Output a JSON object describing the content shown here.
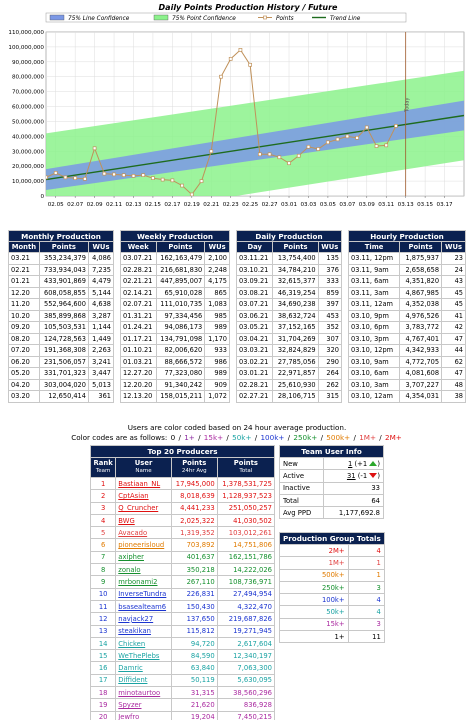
{
  "colors": {
    "band75line": "#7b98e6",
    "band75point": "#8cf28c",
    "points": "#c0915a",
    "trend": "#1e6b1e",
    "header_bg": "#0b2150",
    "forecast_line": "#a05a2c",
    "tier_0": "#000000",
    "tier_1": "#8b2aa0",
    "tier_15k": "#aa2aa0",
    "tier_50k": "#1aa3a3",
    "tier_100k": "#1b34d0",
    "tier_250k": "#15902e",
    "tier_500k": "#e07b00",
    "tier_1m": "#e04040",
    "tier_2m": "#e01010"
  },
  "chart_data": {
    "type": "line",
    "title": "Daily Points Production History / Future",
    "legend": [
      "75% Line Confidence",
      "75% Point Confidence",
      "Points",
      "Trend Line"
    ],
    "x_ticks": [
      "02.05",
      "02.07",
      "02.09",
      "02.11",
      "02.13",
      "02.15",
      "02.17",
      "02.19",
      "02.21",
      "02.23",
      "02.25",
      "02.27",
      "03.01",
      "03.03",
      "03.05",
      "03.07",
      "03.09",
      "03.11",
      "03.13",
      "03.15",
      "03.17"
    ],
    "y_ticks": [
      "0",
      "10,000,000",
      "20,000,000",
      "30,000,000",
      "40,000,000",
      "50,000,000",
      "60,000,000",
      "70,000,000",
      "80,000,000",
      "90,000,000",
      "100,000,000",
      "110,000,000"
    ],
    "ylim": [
      0,
      110000000
    ],
    "x_start_label": "02.04",
    "x_end_label": "03.18",
    "forecast_marker_day": 37,
    "forecast_label": "Today",
    "series": [
      {
        "name": "Points",
        "x": [
          0,
          1,
          2,
          3,
          4,
          5,
          6,
          7,
          8,
          9,
          10,
          11,
          12,
          13,
          14,
          15,
          16,
          17,
          18,
          19,
          20,
          21,
          22,
          23,
          24,
          25,
          26,
          27,
          28,
          29,
          30,
          31,
          32,
          33,
          34,
          35,
          36
        ],
        "values": [
          12500000,
          15500000,
          12500000,
          12000000,
          11500000,
          32000000,
          15000000,
          14500000,
          14000000,
          13500000,
          14000000,
          12000000,
          11000000,
          10500000,
          7000000,
          1000000,
          10000000,
          30000000,
          80000000,
          92000000,
          98000000,
          88000000,
          28000000,
          28000000,
          26000000,
          22000000,
          27000000,
          33000000,
          31500000,
          36000000,
          38000000,
          40000000,
          39000000,
          46000000,
          33500000,
          34000000,
          47000000
        ]
      },
      {
        "name": "Trend Line",
        "x": [
          0,
          43
        ],
        "values": [
          11000000,
          54000000
        ]
      }
    ],
    "band_75_line": {
      "x": [
        0,
        43
      ],
      "lower": [
        4000000,
        44000000
      ],
      "upper": [
        18000000,
        64000000
      ]
    },
    "band_75_point": {
      "x": [
        0,
        43
      ],
      "lower": [
        -20000000,
        24000000
      ],
      "upper": [
        42000000,
        84000000
      ]
    }
  },
  "monthly": {
    "title": "Monthly Production",
    "headers": [
      "Month",
      "Points",
      "WUs"
    ],
    "rows": [
      [
        "03.21",
        "353,234,379",
        "4,086"
      ],
      [
        "02.21",
        "733,934,043",
        "7,235"
      ],
      [
        "01.21",
        "433,901,869",
        "4,479"
      ],
      [
        "12.20",
        "608,058,855",
        "5,144"
      ],
      [
        "11.20",
        "552,964,600",
        "4,638"
      ],
      [
        "10.20",
        "385,899,868",
        "3,287"
      ],
      [
        "09.20",
        "105,503,531",
        "1,144"
      ],
      [
        "08.20",
        "124,728,563",
        "1,449"
      ],
      [
        "07.20",
        "191,368,308",
        "2,263"
      ],
      [
        "06.20",
        "231,506,057",
        "3,241"
      ],
      [
        "05.20",
        "331,701,323",
        "3,447"
      ],
      [
        "04.20",
        "303,004,020",
        "5,013"
      ],
      [
        "03.20",
        "12,650,414",
        "361"
      ]
    ]
  },
  "weekly": {
    "title": "Weekly Production",
    "headers": [
      "Week",
      "Points",
      "WUs"
    ],
    "rows": [
      [
        "03.07.21",
        "162,163,479",
        "2,100"
      ],
      [
        "02.28.21",
        "216,681,830",
        "2,248"
      ],
      [
        "02.21.21",
        "447,895,007",
        "4,175"
      ],
      [
        "02.14.21",
        "65,910,028",
        "865"
      ],
      [
        "02.07.21",
        "111,010,735",
        "1,083"
      ],
      [
        "01.31.21",
        "97,334,456",
        "985"
      ],
      [
        "01.24.21",
        "94,086,173",
        "989"
      ],
      [
        "01.17.21",
        "134,791,098",
        "1,170"
      ],
      [
        "01.10.21",
        "82,006,620",
        "933"
      ],
      [
        "01.03.21",
        "88,666,572",
        "986"
      ],
      [
        "12.27.20",
        "77,323,080",
        "989"
      ],
      [
        "12.20.20",
        "91,340,242",
        "909"
      ],
      [
        "12.13.20",
        "158,015,211",
        "1,072"
      ]
    ]
  },
  "daily": {
    "title": "Daily Production",
    "headers": [
      "Day",
      "Points",
      "WUs"
    ],
    "rows": [
      [
        "03.11.21",
        "13,754,400",
        "135"
      ],
      [
        "03.10.21",
        "34,784,210",
        "376"
      ],
      [
        "03.09.21",
        "32,615,377",
        "333"
      ],
      [
        "03.08.21",
        "46,319,254",
        "859"
      ],
      [
        "03.07.21",
        "34,690,238",
        "397"
      ],
      [
        "03.06.21",
        "38,632,724",
        "453"
      ],
      [
        "03.05.21",
        "37,152,165",
        "352"
      ],
      [
        "03.04.21",
        "31,704,269",
        "307"
      ],
      [
        "03.03.21",
        "32,824,829",
        "320"
      ],
      [
        "03.02.21",
        "27,785,056",
        "290"
      ],
      [
        "03.01.21",
        "22,971,857",
        "264"
      ],
      [
        "02.28.21",
        "25,610,930",
        "262"
      ],
      [
        "02.27.21",
        "28,106,715",
        "315"
      ]
    ]
  },
  "hourly": {
    "title": "Hourly Production",
    "headers": [
      "Time",
      "Points",
      "WUs"
    ],
    "rows": [
      [
        "03.11, 12pm",
        "1,875,937",
        "23"
      ],
      [
        "03.11, 9am",
        "2,658,658",
        "24"
      ],
      [
        "03.11, 6am",
        "4,351,820",
        "43"
      ],
      [
        "03.11, 3am",
        "4,867,985",
        "45"
      ],
      [
        "03.11, 12am",
        "4,352,038",
        "45"
      ],
      [
        "03.10, 9pm",
        "4,976,526",
        "41"
      ],
      [
        "03.10, 6pm",
        "3,783,772",
        "42"
      ],
      [
        "03.10, 3pm",
        "4,767,401",
        "47"
      ],
      [
        "03.10, 12pm",
        "4,342,933",
        "44"
      ],
      [
        "03.10, 9am",
        "4,772,705",
        "62"
      ],
      [
        "03.10, 6am",
        "4,081,608",
        "47"
      ],
      [
        "03.10, 3am",
        "3,707,227",
        "48"
      ],
      [
        "03.10, 12am",
        "4,354,031",
        "38"
      ]
    ]
  },
  "note": {
    "line1": "Users are color coded based on 24 hour average production.",
    "line2_prefix": "Color codes are as follows:",
    "codes": [
      {
        "label": "0",
        "color": "#000000"
      },
      {
        "label": "1+",
        "color": "#8b2aa0"
      },
      {
        "label": "15k+",
        "color": "#aa2aa0"
      },
      {
        "label": "50k+",
        "color": "#1aa3a3"
      },
      {
        "label": "100k+",
        "color": "#1b34d0"
      },
      {
        "label": "250k+",
        "color": "#15902e"
      },
      {
        "label": "500k+",
        "color": "#e07b00"
      },
      {
        "label": "1M+",
        "color": "#e04040"
      },
      {
        "label": "2M+",
        "color": "#e01010"
      }
    ]
  },
  "producers": {
    "title": "Top 20 Producers",
    "headers": [
      {
        "main": "Rank",
        "sub": "Team"
      },
      {
        "main": "User",
        "sub": "Name"
      },
      {
        "main": "Points",
        "sub": "24hr Avg"
      },
      {
        "main": "Points",
        "sub": "Total"
      }
    ],
    "rows": [
      {
        "rank": "1",
        "user": "Bastiaan_NL",
        "avg": "17,945,000",
        "total": "1,378,531,725",
        "color": "#e01010"
      },
      {
        "rank": "2",
        "user": "CptAsian",
        "avg": "8,018,639",
        "total": "1,128,937,523",
        "color": "#e01010"
      },
      {
        "rank": "3",
        "user": "Q_Cruncher",
        "avg": "4,441,233",
        "total": "251,050,257",
        "color": "#e01010"
      },
      {
        "rank": "4",
        "user": "BWG",
        "avg": "2,025,322",
        "total": "41,030,502",
        "color": "#e01010"
      },
      {
        "rank": "5",
        "user": "Avacado",
        "avg": "1,319,352",
        "total": "103,012,261",
        "color": "#e04040"
      },
      {
        "rank": "6",
        "user": "pioneerisloud",
        "avg": "703,892",
        "total": "14,751,806",
        "color": "#e07b00"
      },
      {
        "rank": "7",
        "user": "axipher",
        "avg": "401,637",
        "total": "162,151,786",
        "color": "#15902e"
      },
      {
        "rank": "8",
        "user": "zonalo",
        "avg": "350,218",
        "total": "14,222,026",
        "color": "#15902e"
      },
      {
        "rank": "9",
        "user": "mrbonami2",
        "avg": "267,110",
        "total": "108,736,971",
        "color": "#15902e"
      },
      {
        "rank": "10",
        "user": "InverseTundra",
        "avg": "226,831",
        "total": "27,494,954",
        "color": "#1b34d0"
      },
      {
        "rank": "11",
        "user": "bsasealteam6",
        "avg": "150,430",
        "total": "4,322,470",
        "color": "#1b34d0"
      },
      {
        "rank": "12",
        "user": "navjack27",
        "avg": "137,650",
        "total": "219,687,826",
        "color": "#1b34d0"
      },
      {
        "rank": "13",
        "user": "steakikan",
        "avg": "115,812",
        "total": "19,271,945",
        "color": "#1b34d0"
      },
      {
        "rank": "14",
        "user": "Chicken",
        "avg": "94,720",
        "total": "2,617,604",
        "color": "#1aa3a3"
      },
      {
        "rank": "15",
        "user": "WeThePlebs",
        "avg": "84,590",
        "total": "12,340,197",
        "color": "#1aa3a3"
      },
      {
        "rank": "16",
        "user": "Damric",
        "avg": "63,840",
        "total": "7,063,300",
        "color": "#1aa3a3"
      },
      {
        "rank": "17",
        "user": "Diffident",
        "avg": "50,119",
        "total": "5,630,095",
        "color": "#1aa3a3"
      },
      {
        "rank": "18",
        "user": "minotaurtoo",
        "avg": "31,315",
        "total": "38,560,296",
        "color": "#aa2aa0"
      },
      {
        "rank": "19",
        "user": "Spyzer",
        "avg": "21,620",
        "total": "836,928",
        "color": "#aa2aa0"
      },
      {
        "rank": "20",
        "user": "Jewfro",
        "avg": "19,204",
        "total": "7,450,215",
        "color": "#aa2aa0"
      }
    ]
  },
  "team_info": {
    "title": "Team User Info",
    "rows": [
      {
        "label": "New",
        "value": "1",
        "delta": "(+1",
        "dir": "up"
      },
      {
        "label": "Active",
        "value": "31",
        "delta": "(-1",
        "dir": "down"
      },
      {
        "label": "Inactive",
        "value": "33"
      },
      {
        "label": "Total",
        "value": "64"
      },
      {
        "label": "Avg PPD",
        "value": "1,177,692.8"
      }
    ]
  },
  "group_totals": {
    "title": "Production Group Totals",
    "rows": [
      {
        "label": "2M+",
        "value": "4",
        "color": "#e01010"
      },
      {
        "label": "1M+",
        "value": "1",
        "color": "#e04040"
      },
      {
        "label": "500k+",
        "value": "1",
        "color": "#e07b00"
      },
      {
        "label": "250k+",
        "value": "3",
        "color": "#15902e"
      },
      {
        "label": "100k+",
        "value": "4",
        "color": "#1b34d0"
      },
      {
        "label": "50k+",
        "value": "4",
        "color": "#1aa3a3"
      },
      {
        "label": "15k+",
        "value": "3",
        "color": "#aa2aa0"
      },
      {
        "label": "1+",
        "value": "11",
        "color": "#000000"
      }
    ]
  }
}
